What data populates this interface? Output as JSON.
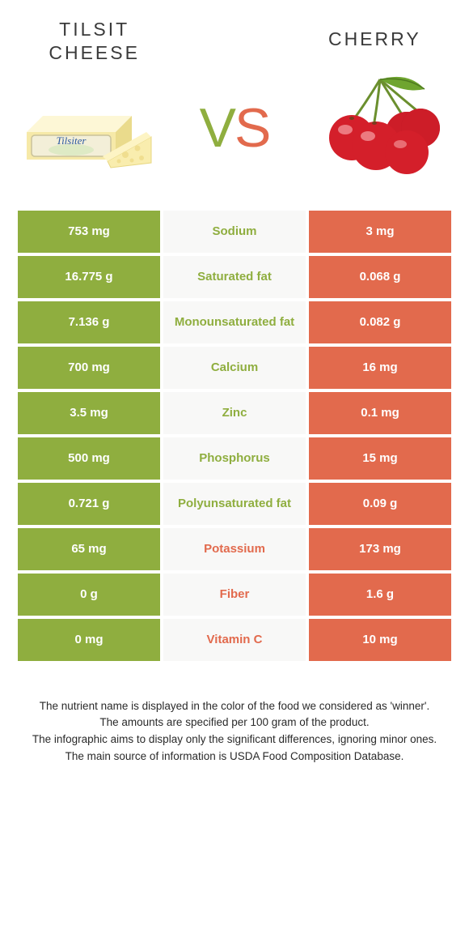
{
  "header": {
    "left_title": "TILSIT\nCHEESE",
    "right_title": "CHERRY",
    "vs_v": "V",
    "vs_s": "S"
  },
  "colors": {
    "green": "#8fae3f",
    "orange": "#e26a4d",
    "mid_bg": "#f8f8f7",
    "white": "#ffffff",
    "text": "#3a3a3a"
  },
  "cheese_illustration": {
    "block_fill": "#f6e9a8",
    "block_top": "#fdf7d6",
    "block_side": "#eadb8c",
    "label_fill": "#f3efd8",
    "label_border": "#c9c29a",
    "brand_text": "Tilsiter",
    "brand_color": "#2b5aa0",
    "slice_fill": "#f9edae",
    "slice_edge": "#e8d783",
    "hole_fill": "#f0de8f"
  },
  "cherry_illustration": {
    "body_fill": "#d41f2a",
    "body_shade": "#a81620",
    "highlight": "#f6a1a5",
    "stem": "#6b8f2e",
    "leaf_fill": "#6fa52f",
    "leaf_shade": "#4e7a1f"
  },
  "table": {
    "rows": [
      {
        "left": "753 mg",
        "label": "Sodium",
        "right": "3 mg",
        "winner": "green"
      },
      {
        "left": "16.775 g",
        "label": "Saturated fat",
        "right": "0.068 g",
        "winner": "green"
      },
      {
        "left": "7.136 g",
        "label": "Monounsaturated fat",
        "right": "0.082 g",
        "winner": "green"
      },
      {
        "left": "700 mg",
        "label": "Calcium",
        "right": "16 mg",
        "winner": "green"
      },
      {
        "left": "3.5 mg",
        "label": "Zinc",
        "right": "0.1 mg",
        "winner": "green"
      },
      {
        "left": "500 mg",
        "label": "Phosphorus",
        "right": "15 mg",
        "winner": "green"
      },
      {
        "left": "0.721 g",
        "label": "Polyunsaturated fat",
        "right": "0.09 g",
        "winner": "green"
      },
      {
        "left": "65 mg",
        "label": "Potassium",
        "right": "173 mg",
        "winner": "orange"
      },
      {
        "left": "0 g",
        "label": "Fiber",
        "right": "1.6 g",
        "winner": "orange"
      },
      {
        "left": "0 mg",
        "label": "Vitamin C",
        "right": "10 mg",
        "winner": "orange"
      }
    ]
  },
  "footnotes": {
    "line1": "The nutrient name is displayed in the color of the food we considered as 'winner'.",
    "line2": "The amounts are specified per 100 gram of the product.",
    "line3": "The infographic aims to display only the significant differences, ignoring minor ones.",
    "line4": "The main source of information is USDA Food Composition Database."
  }
}
